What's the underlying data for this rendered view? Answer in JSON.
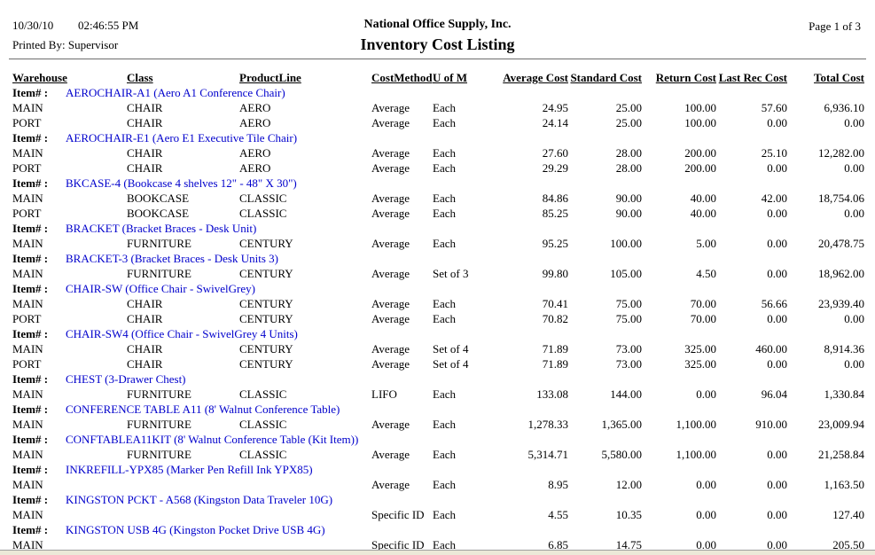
{
  "report": {
    "date": "10/30/10",
    "time": "02:46:55 PM",
    "printed_by": "Printed By: Supervisor",
    "company": "National Office Supply, Inc.",
    "title": "Inventory Cost Listing",
    "page": "Page 1 of 3",
    "colors": {
      "item_link_blue": "#0000cc",
      "page_edge": "#ece9d8"
    }
  },
  "table": {
    "item_label": "Item# :",
    "headers": [
      "Warehouse",
      "Class",
      "ProductLine",
      "CostMethod",
      "U of M",
      "Average Cost",
      "Standard Cost",
      "Return Cost",
      "Last Rec Cost",
      "Total Cost"
    ],
    "groups": [
      {
        "item": "AEROCHAIR-A1 (Aero A1 Conference Chair)",
        "rows": [
          {
            "warehouse": "MAIN",
            "class": "CHAIR",
            "product_line": "AERO",
            "cost_method": "Average",
            "uom": "Each",
            "average_cost": "24.95",
            "standard_cost": "25.00",
            "return_cost": "100.00",
            "last_rec_cost": "57.60",
            "total_cost": "6,936.10"
          },
          {
            "warehouse": "PORT",
            "class": "CHAIR",
            "product_line": "AERO",
            "cost_method": "Average",
            "uom": "Each",
            "average_cost": "24.14",
            "standard_cost": "25.00",
            "return_cost": "100.00",
            "last_rec_cost": "0.00",
            "total_cost": "0.00"
          }
        ]
      },
      {
        "item": "AEROCHAIR-E1 (Aero E1 Executive Tile Chair)",
        "rows": [
          {
            "warehouse": "MAIN",
            "class": "CHAIR",
            "product_line": "AERO",
            "cost_method": "Average",
            "uom": "Each",
            "average_cost": "27.60",
            "standard_cost": "28.00",
            "return_cost": "200.00",
            "last_rec_cost": "25.10",
            "total_cost": "12,282.00"
          },
          {
            "warehouse": "PORT",
            "class": "CHAIR",
            "product_line": "AERO",
            "cost_method": "Average",
            "uom": "Each",
            "average_cost": "29.29",
            "standard_cost": "28.00",
            "return_cost": "200.00",
            "last_rec_cost": "0.00",
            "total_cost": "0.00"
          }
        ]
      },
      {
        "item": "BKCASE-4 (Bookcase 4 shelves 12\" - 48\" X 30\")",
        "rows": [
          {
            "warehouse": "MAIN",
            "class": "BOOKCASE",
            "product_line": "CLASSIC",
            "cost_method": "Average",
            "uom": "Each",
            "average_cost": "84.86",
            "standard_cost": "90.00",
            "return_cost": "40.00",
            "last_rec_cost": "42.00",
            "total_cost": "18,754.06"
          },
          {
            "warehouse": "PORT",
            "class": "BOOKCASE",
            "product_line": "CLASSIC",
            "cost_method": "Average",
            "uom": "Each",
            "average_cost": "85.25",
            "standard_cost": "90.00",
            "return_cost": "40.00",
            "last_rec_cost": "0.00",
            "total_cost": "0.00"
          }
        ]
      },
      {
        "item": "BRACKET (Bracket Braces - Desk Unit)",
        "rows": [
          {
            "warehouse": "MAIN",
            "class": "FURNITURE",
            "product_line": "CENTURY",
            "cost_method": "Average",
            "uom": "Each",
            "average_cost": "95.25",
            "standard_cost": "100.00",
            "return_cost": "5.00",
            "last_rec_cost": "0.00",
            "total_cost": "20,478.75"
          }
        ]
      },
      {
        "item": "BRACKET-3 (Bracket Braces - Desk Units 3)",
        "rows": [
          {
            "warehouse": "MAIN",
            "class": "FURNITURE",
            "product_line": "CENTURY",
            "cost_method": "Average",
            "uom": "Set of 3",
            "average_cost": "99.80",
            "standard_cost": "105.00",
            "return_cost": "4.50",
            "last_rec_cost": "0.00",
            "total_cost": "18,962.00"
          }
        ]
      },
      {
        "item": "CHAIR-SW (Office Chair - SwivelGrey)",
        "rows": [
          {
            "warehouse": "MAIN",
            "class": "CHAIR",
            "product_line": "CENTURY",
            "cost_method": "Average",
            "uom": "Each",
            "average_cost": "70.41",
            "standard_cost": "75.00",
            "return_cost": "70.00",
            "last_rec_cost": "56.66",
            "total_cost": "23,939.40"
          },
          {
            "warehouse": "PORT",
            "class": "CHAIR",
            "product_line": "CENTURY",
            "cost_method": "Average",
            "uom": "Each",
            "average_cost": "70.82",
            "standard_cost": "75.00",
            "return_cost": "70.00",
            "last_rec_cost": "0.00",
            "total_cost": "0.00"
          }
        ]
      },
      {
        "item": "CHAIR-SW4 (Office Chair - SwivelGrey 4 Units)",
        "rows": [
          {
            "warehouse": "MAIN",
            "class": "CHAIR",
            "product_line": "CENTURY",
            "cost_method": "Average",
            "uom": "Set of 4",
            "average_cost": "71.89",
            "standard_cost": "73.00",
            "return_cost": "325.00",
            "last_rec_cost": "460.00",
            "total_cost": "8,914.36"
          },
          {
            "warehouse": "PORT",
            "class": "CHAIR",
            "product_line": "CENTURY",
            "cost_method": "Average",
            "uom": "Set of 4",
            "average_cost": "71.89",
            "standard_cost": "73.00",
            "return_cost": "325.00",
            "last_rec_cost": "0.00",
            "total_cost": "0.00"
          }
        ]
      },
      {
        "item": "CHEST (3-Drawer Chest)",
        "rows": [
          {
            "warehouse": "MAIN",
            "class": "FURNITURE",
            "product_line": "CLASSIC",
            "cost_method": "LIFO",
            "uom": "Each",
            "average_cost": "133.08",
            "standard_cost": "144.00",
            "return_cost": "0.00",
            "last_rec_cost": "96.04",
            "total_cost": "1,330.84"
          }
        ]
      },
      {
        "item": "CONFERENCE TABLE A11 (8' Walnut Conference Table)",
        "rows": [
          {
            "warehouse": "MAIN",
            "class": "FURNITURE",
            "product_line": "CLASSIC",
            "cost_method": "Average",
            "uom": "Each",
            "average_cost": "1,278.33",
            "standard_cost": "1,365.00",
            "return_cost": "1,100.00",
            "last_rec_cost": "910.00",
            "total_cost": "23,009.94"
          }
        ]
      },
      {
        "item": "CONFTABLEA11KIT (8' Walnut Conference Table (Kit Item))",
        "rows": [
          {
            "warehouse": "MAIN",
            "class": "FURNITURE",
            "product_line": "CLASSIC",
            "cost_method": "Average",
            "uom": "Each",
            "average_cost": "5,314.71",
            "standard_cost": "5,580.00",
            "return_cost": "1,100.00",
            "last_rec_cost": "0.00",
            "total_cost": "21,258.84"
          }
        ]
      },
      {
        "item": "INKREFILL-YPX85 (Marker Pen Refill Ink YPX85)",
        "rows": [
          {
            "warehouse": "MAIN",
            "class": "",
            "product_line": "",
            "cost_method": "Average",
            "uom": "Each",
            "average_cost": "8.95",
            "standard_cost": "12.00",
            "return_cost": "0.00",
            "last_rec_cost": "0.00",
            "total_cost": "1,163.50"
          }
        ]
      },
      {
        "item": "KINGSTON PCKT - A568 (Kingston Data Traveler 10G)",
        "rows": [
          {
            "warehouse": "MAIN",
            "class": "",
            "product_line": "",
            "cost_method": "Specific ID",
            "uom": "Each",
            "average_cost": "4.55",
            "standard_cost": "10.35",
            "return_cost": "0.00",
            "last_rec_cost": "0.00",
            "total_cost": "127.40"
          }
        ]
      },
      {
        "item": "KINGSTON USB 4G (Kingston Pocket Drive USB 4G)",
        "rows": [
          {
            "warehouse": "MAIN",
            "class": "",
            "product_line": "",
            "cost_method": "Specific ID",
            "uom": "Each",
            "average_cost": "6.85",
            "standard_cost": "14.75",
            "return_cost": "0.00",
            "last_rec_cost": "0.00",
            "total_cost": "205.50"
          }
        ]
      }
    ]
  }
}
